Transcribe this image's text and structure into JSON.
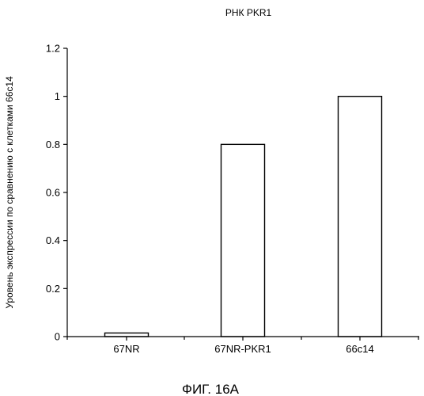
{
  "chart_data": {
    "type": "bar",
    "title": "РНК PKR1",
    "xlabel": "",
    "ylabel": "Уровень экспрессии по сравнению с клетками 66с14",
    "categories": [
      "67NR",
      "67NR-PKR1",
      "66c14"
    ],
    "values": [
      0.015,
      0.8,
      1.0
    ],
    "ylim": [
      0,
      1.2
    ],
    "yticks": [
      0,
      0.2,
      0.4,
      0.6,
      0.8,
      1,
      1.2
    ],
    "ytick_labels": [
      "0",
      "0.2",
      "0.4",
      "0.6",
      "0.8",
      "1",
      "1.2"
    ],
    "grid": false,
    "legend": "none",
    "bar_fill": "#ffffff",
    "bar_stroke": "#000000"
  },
  "caption": "ФИГ. 16А"
}
